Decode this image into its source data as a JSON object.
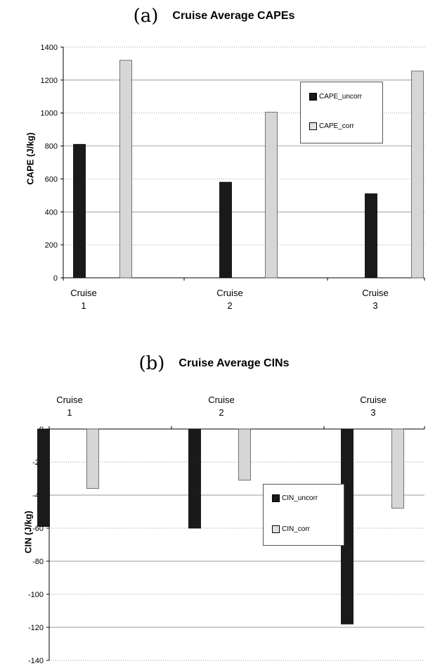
{
  "colors": {
    "uncorrected": "#1a1a1a",
    "corrected": "#d6d6d6",
    "grid": "#777777"
  },
  "chart_data": [
    {
      "panel_label": "(a)",
      "type": "bar",
      "title": "Cruise Average CAPEs",
      "ylabel": "CAPE (J/kg)",
      "xlabel": "",
      "categories": [
        "Cruise\n1",
        "Cruise\n2",
        "Cruise\n3"
      ],
      "ylim": [
        0,
        1400
      ],
      "yticks": [
        0,
        200,
        400,
        600,
        800,
        1000,
        1200,
        1400
      ],
      "grid": true,
      "legend_position": "upper right",
      "series": [
        {
          "name": "CAPE_uncorr",
          "values": [
            810,
            580,
            510
          ]
        },
        {
          "name": "CAPE_corr",
          "values": [
            1320,
            1005,
            1255
          ]
        }
      ]
    },
    {
      "panel_label": "(b)",
      "type": "bar",
      "title": "Cruise Average CINs",
      "ylabel": "CIN (J/kg)",
      "xlabel": "",
      "categories": [
        "Cruise\n1",
        "Cruise\n2",
        "Cruise\n3"
      ],
      "ylim": [
        -140,
        0
      ],
      "yticks": [
        0,
        -20,
        -40,
        -60,
        -80,
        -100,
        -120,
        -140
      ],
      "grid": true,
      "legend_position": "center",
      "series": [
        {
          "name": "CIN_uncorr",
          "values": [
            -59,
            -60,
            -118
          ]
        },
        {
          "name": "CIN_corr",
          "values": [
            -36,
            -31,
            -48
          ]
        }
      ]
    }
  ]
}
